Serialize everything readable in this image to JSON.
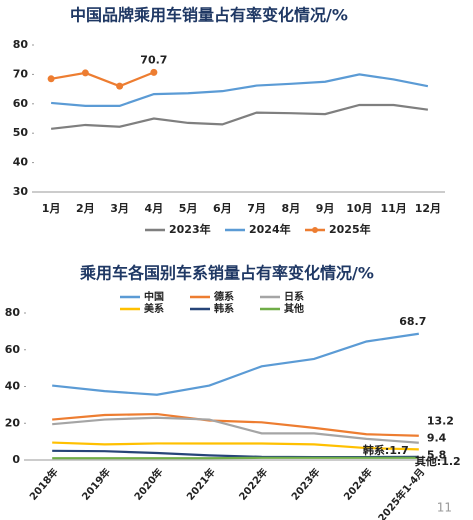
{
  "chart_data": [
    {
      "type": "line",
      "title": "中国品牌乘用车销量占有率变化情况/%",
      "categories": [
        "1月",
        "2月",
        "3月",
        "4月",
        "5月",
        "6月",
        "7月",
        "8月",
        "9月",
        "10月",
        "11月",
        "12月"
      ],
      "ylim": [
        30,
        80
      ],
      "yticks": [
        30,
        40,
        50,
        60,
        70,
        80
      ],
      "grid": false,
      "legend": "bottom",
      "series": [
        {
          "name": "2023年",
          "color": "#7f7f7f",
          "markers": false,
          "values": [
            51.5,
            52.8,
            52.2,
            55,
            53.5,
            53,
            57,
            56.8,
            56.5,
            59.6,
            59.6,
            58
          ]
        },
        {
          "name": "2024年",
          "color": "#5b9bd5",
          "markers": false,
          "values": [
            60.3,
            59.3,
            59.3,
            63.3,
            63.6,
            64.3,
            66.2,
            66.8,
            67.5,
            70,
            68.3,
            66
          ]
        },
        {
          "name": "2025年",
          "color": "#ed7d31",
          "markers": true,
          "values": [
            68.5,
            70.5,
            66,
            70.7,
            null,
            null,
            null,
            null,
            null,
            null,
            null,
            null
          ],
          "value_labels": [
            null,
            null,
            null,
            "70.7",
            null,
            null,
            null,
            null,
            null,
            null,
            null,
            null
          ]
        }
      ]
    },
    {
      "type": "line",
      "title": "乘用车各国别车系销量占有率变化情况/%",
      "categories": [
        "2018年",
        "2019年",
        "2020年",
        "2021年",
        "2022年",
        "2023年",
        "2024年",
        "2025年1-4月"
      ],
      "ylim": [
        0,
        80
      ],
      "yticks": [
        0,
        20,
        40,
        60,
        80
      ],
      "grid": false,
      "legend": "top",
      "series": [
        {
          "name": "中国",
          "color": "#5b9bd5",
          "values": [
            40.5,
            37.5,
            35.5,
            40.5,
            51,
            55,
            64.5,
            68.7
          ],
          "value_labels": [
            null,
            null,
            null,
            null,
            null,
            null,
            null,
            "68.7"
          ]
        },
        {
          "name": "德系",
          "color": "#ed7d31",
          "values": [
            22,
            24.5,
            25,
            21.5,
            20.5,
            17.5,
            14,
            13.2
          ],
          "value_labels": [
            null,
            null,
            null,
            null,
            null,
            null,
            null,
            "13.2"
          ]
        },
        {
          "name": "日系",
          "color": "#a5a5a5",
          "values": [
            19.5,
            22,
            23,
            22,
            14.5,
            14.5,
            11.5,
            9.4
          ],
          "value_labels": [
            null,
            null,
            null,
            null,
            null,
            null,
            null,
            "9.4"
          ]
        },
        {
          "name": "美系",
          "color": "#ffc000",
          "values": [
            9.5,
            8.5,
            9,
            9,
            9,
            8.5,
            6.5,
            5.8
          ],
          "value_labels": [
            null,
            null,
            null,
            null,
            null,
            null,
            null,
            "5.8"
          ]
        },
        {
          "name": "韩系",
          "color": "#264478",
          "values": [
            5,
            4.8,
            3.8,
            2.5,
            1.7,
            1.6,
            1.6,
            1.7
          ],
          "value_labels": [
            null,
            null,
            null,
            null,
            null,
            null,
            null,
            "韩系:1.7"
          ]
        },
        {
          "name": "其他",
          "color": "#70ad47",
          "values": [
            1,
            1,
            1,
            1,
            1.2,
            1.2,
            1.2,
            1.2
          ],
          "value_labels": [
            null,
            null,
            null,
            null,
            null,
            null,
            null,
            "其他:1.2"
          ]
        }
      ]
    }
  ],
  "page_number": "11"
}
